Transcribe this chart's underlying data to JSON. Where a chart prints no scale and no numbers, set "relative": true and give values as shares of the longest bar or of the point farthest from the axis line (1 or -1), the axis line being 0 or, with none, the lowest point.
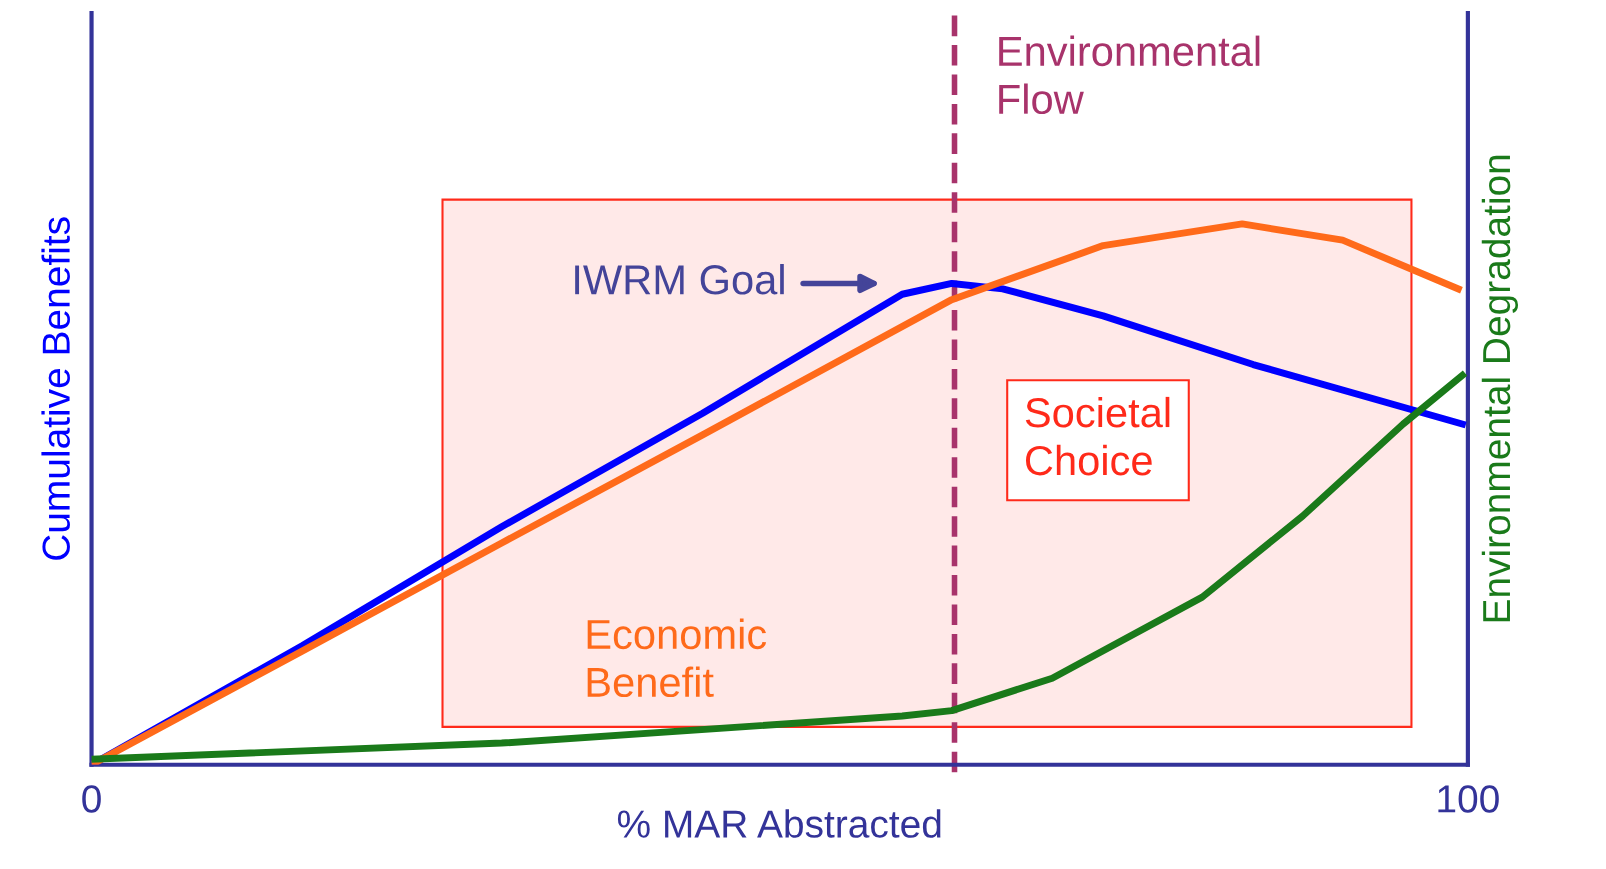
{
  "chart_data": {
    "type": "line",
    "relative": true,
    "xlabel": "% MAR Abstracted",
    "ylabel": "Cumulative Benefits",
    "y2label": "Environmental Degradation",
    "xlim": [
      0,
      100
    ],
    "xticks": [
      0,
      100
    ],
    "marker": "none",
    "line_style": "solid",
    "series": [
      {
        "color": "#0000ff",
        "x": [
          0,
          15.3,
          29.8,
          44.4,
          58.9,
          62.5,
          66.2,
          73.5,
          84.4,
          99.6
        ],
        "values": [
          0,
          0.22,
          0.44,
          0.65,
          0.87,
          0.89,
          0.88,
          0.83,
          0.74,
          0.63
        ]
      },
      {
        "name": "Economic\nBenefit",
        "color": "#ff6a1a",
        "x": [
          0,
          15.3,
          29.8,
          44.4,
          62.5,
          73.5,
          83.6,
          90.9,
          99.3
        ],
        "values": [
          0,
          0.21,
          0.41,
          0.61,
          0.86,
          0.96,
          1.0,
          0.97,
          0.88
        ]
      },
      {
        "color": "#1a7a1a",
        "x": [
          0,
          29.8,
          58.9,
          62.5,
          69.8,
          80.7,
          88.0,
          95.3,
          99.6
        ],
        "values": [
          0.01,
          0.04,
          0.09,
          0.1,
          0.16,
          0.31,
          0.46,
          0.63,
          0.72
        ]
      }
    ],
    "ref_lines": [
      {
        "axis": "x",
        "value": 62.7,
        "label": "Environmental\nFlow",
        "color": "#a8336b",
        "line_style": "dashed"
      }
    ],
    "bands": [
      {
        "axis": "x",
        "from": 25.5,
        "to": 95.9,
        "label": "Societal\nChoice",
        "color": "#ff2a1a"
      }
    ],
    "annotations": [
      "IWRM Goal"
    ]
  }
}
